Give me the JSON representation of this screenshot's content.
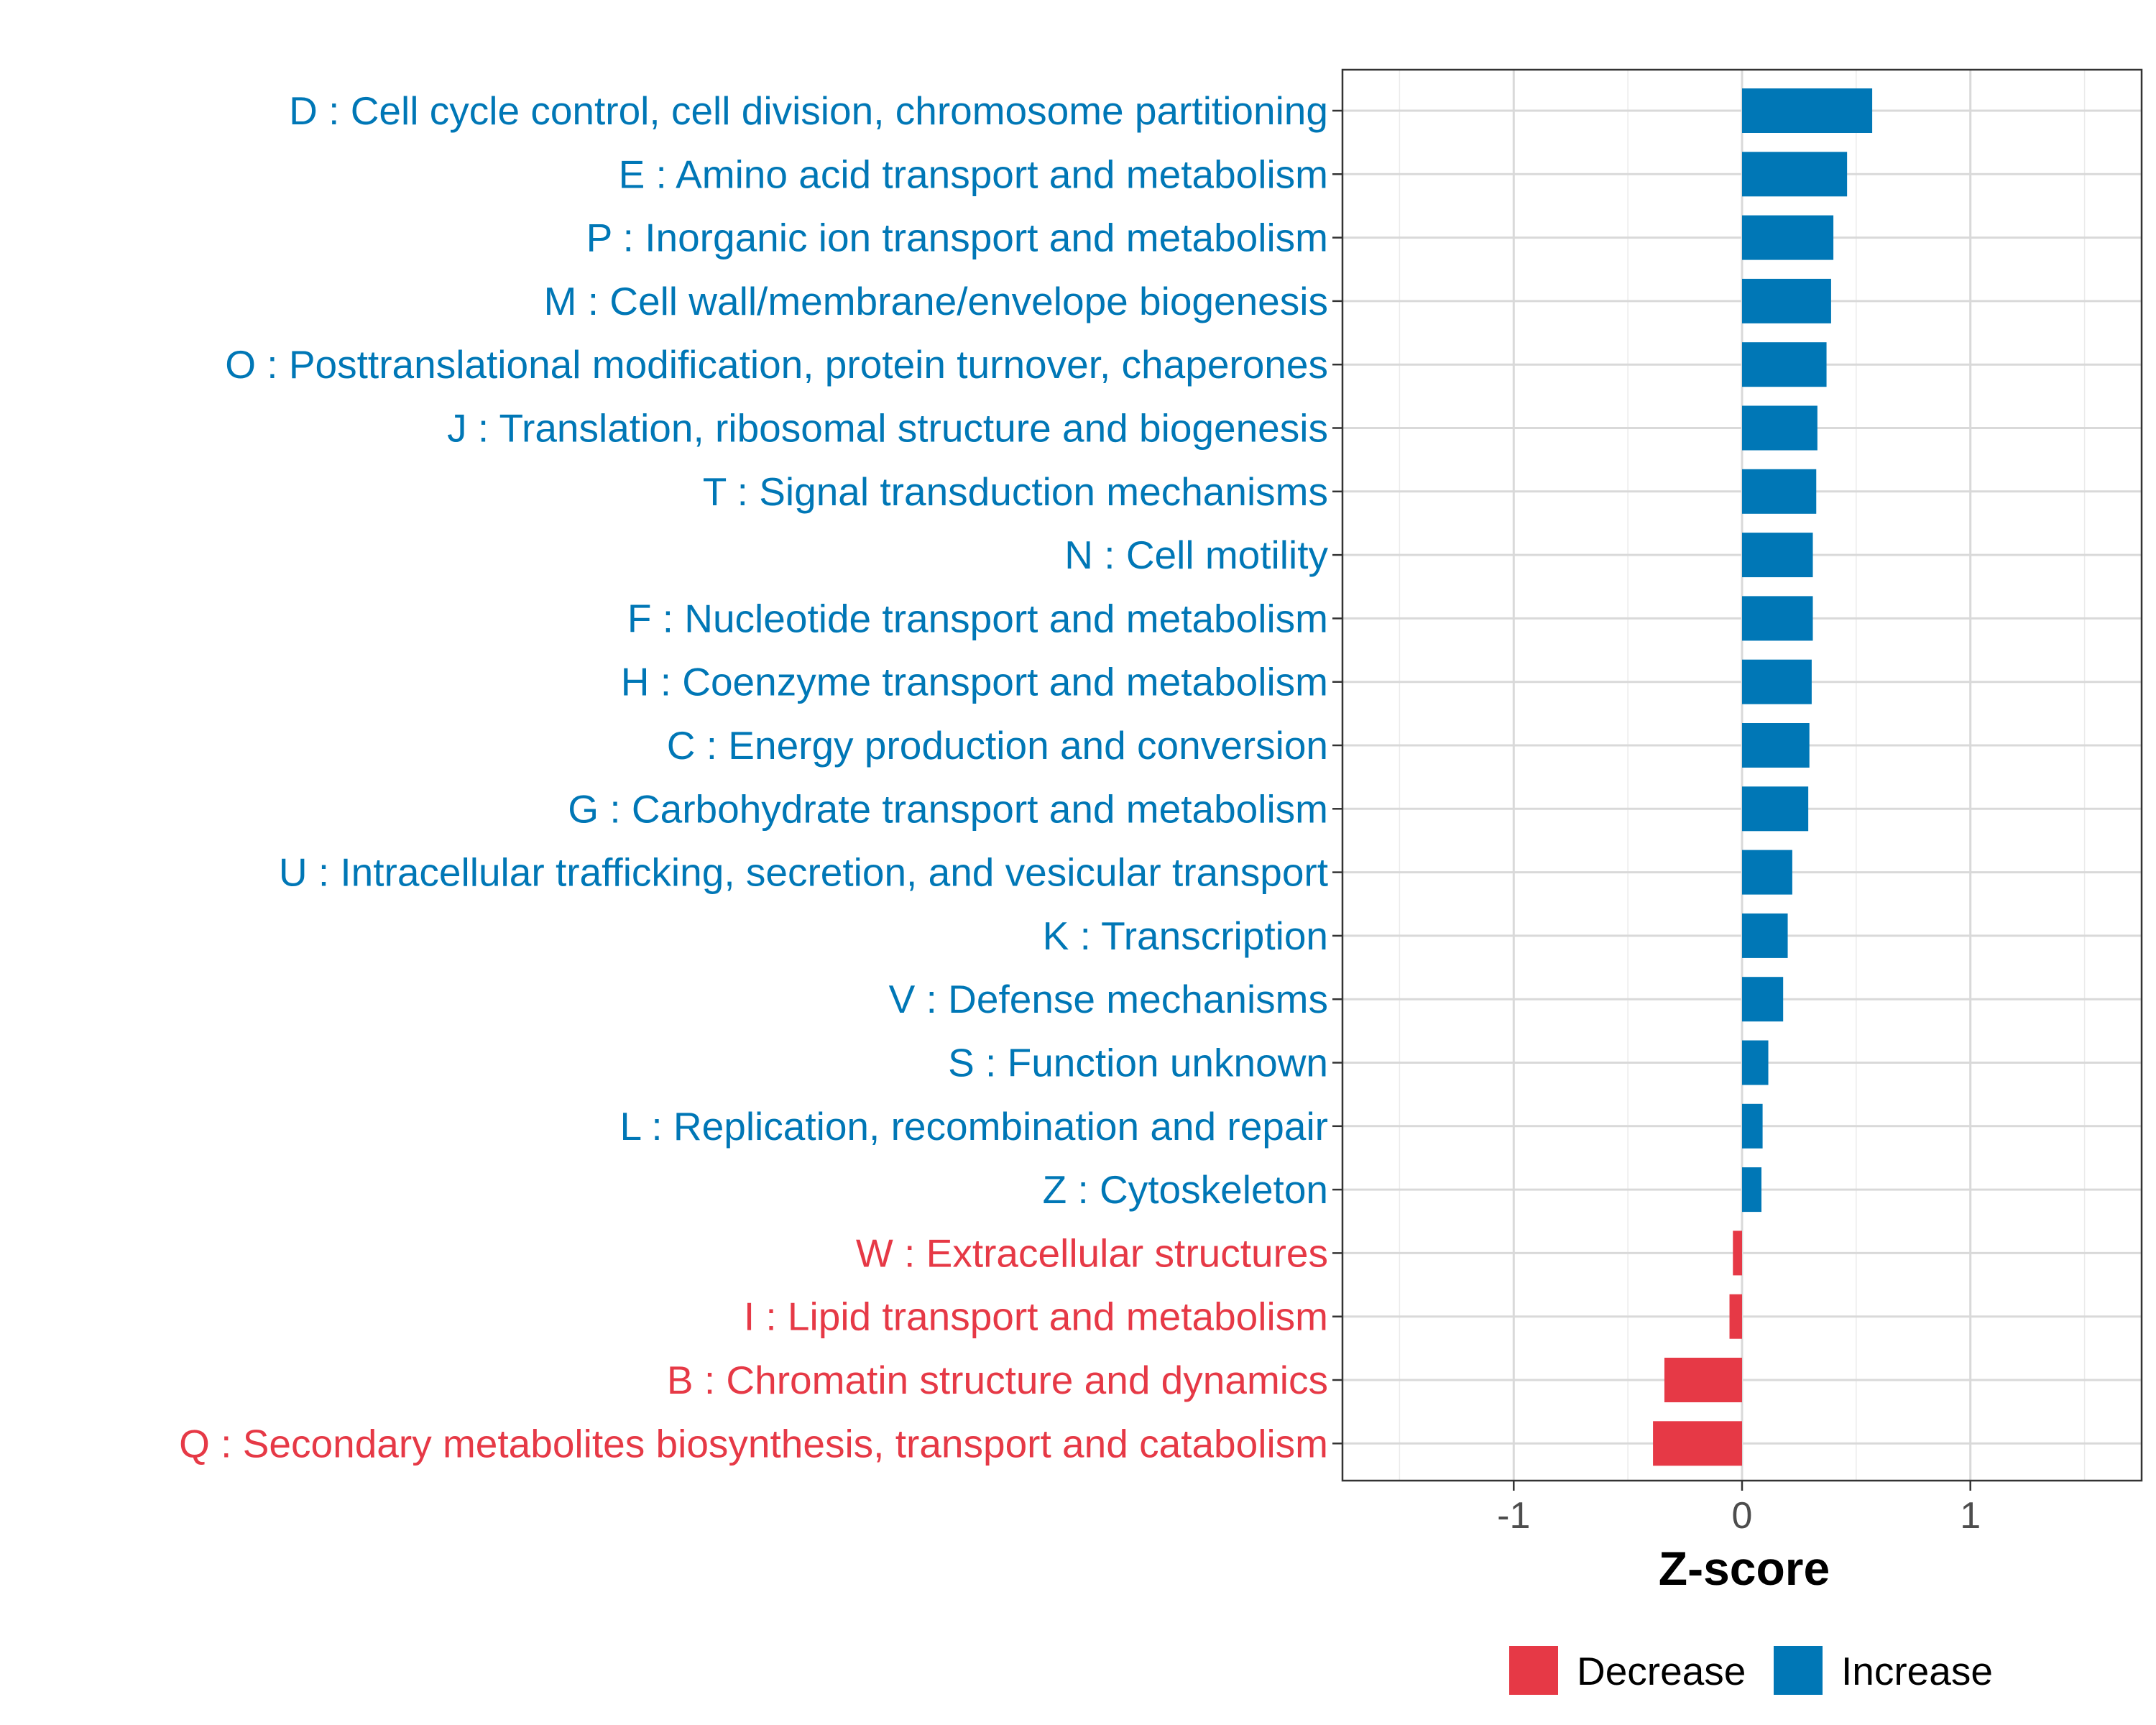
{
  "chart_data": {
    "type": "bar",
    "orientation": "horizontal",
    "xlabel": "Z-score",
    "xlim": [
      -1.75,
      1.75
    ],
    "xticks": [
      -1,
      0,
      1
    ],
    "xtick_labels": [
      "-1",
      "0",
      "1"
    ],
    "grid": true,
    "legend_position": "bottom",
    "colors": {
      "Decrease": "#e63946",
      "Increase": "#0077b6"
    },
    "legend": [
      {
        "label": "Decrease",
        "color": "#e63946"
      },
      {
        "label": "Increase",
        "color": "#0077b6"
      }
    ],
    "categories": [
      "D : Cell cycle control, cell division, chromosome partitioning",
      "E : Amino acid transport and metabolism",
      "P : Inorganic ion transport and metabolism",
      "M : Cell wall/membrane/envelope biogenesis",
      "O : Posttranslational modification, protein turnover, chaperones",
      "J : Translation, ribosomal structure and biogenesis",
      "T : Signal transduction mechanisms",
      "N : Cell motility",
      "F : Nucleotide transport and metabolism",
      "H : Coenzyme transport and metabolism",
      "C : Energy production and conversion",
      "G : Carbohydrate transport and metabolism",
      "U : Intracellular trafficking, secretion, and vesicular transport",
      "K : Transcription",
      "V : Defense mechanisms",
      "S : Function unknown",
      "L : Replication, recombination and repair",
      "Z : Cytoskeleton",
      "W : Extracellular structures",
      "I : Lipid transport and metabolism",
      "B : Chromatin structure and dynamics",
      "Q : Secondary metabolites biosynthesis, transport and catabolism"
    ],
    "values": [
      0.57,
      0.46,
      0.4,
      0.39,
      0.37,
      0.33,
      0.325,
      0.31,
      0.31,
      0.305,
      0.295,
      0.29,
      0.22,
      0.2,
      0.18,
      0.115,
      0.09,
      0.085,
      -0.04,
      -0.055,
      -0.34,
      -0.39
    ],
    "groups": [
      "Increase",
      "Increase",
      "Increase",
      "Increase",
      "Increase",
      "Increase",
      "Increase",
      "Increase",
      "Increase",
      "Increase",
      "Increase",
      "Increase",
      "Increase",
      "Increase",
      "Increase",
      "Increase",
      "Increase",
      "Increase",
      "Decrease",
      "Decrease",
      "Decrease",
      "Decrease"
    ]
  }
}
